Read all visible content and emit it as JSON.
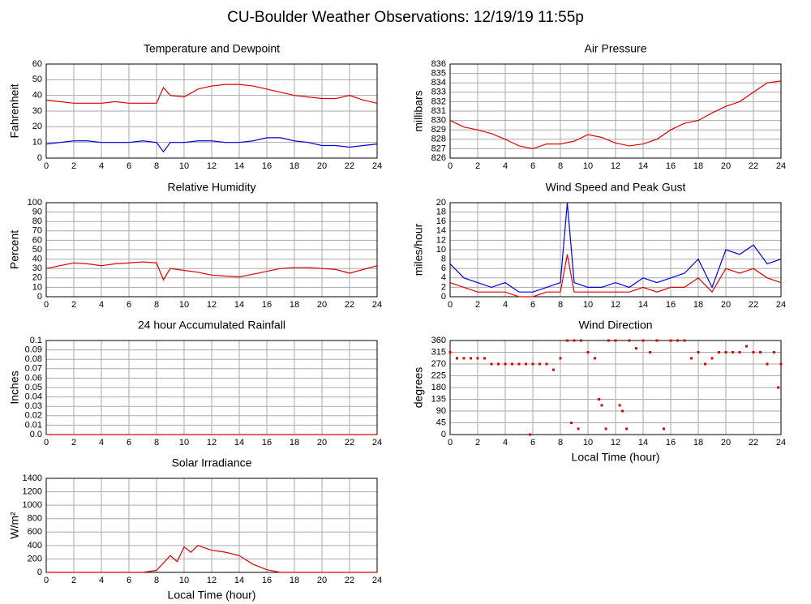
{
  "title": "CU-Boulder Weather Observations: 12/19/19 11:55p",
  "chart_data": [
    {
      "type": "line",
      "title": "Temperature and Dewpoint",
      "ylabel": "Fahrenheit",
      "x": [
        0,
        1,
        2,
        3,
        4,
        5,
        6,
        7,
        8,
        8.5,
        9,
        10,
        11,
        12,
        13,
        14,
        15,
        16,
        17,
        18,
        19,
        20,
        21,
        22,
        23,
        24
      ],
      "series": [
        {
          "color": "#e00000",
          "values": [
            37,
            36,
            35,
            35,
            35,
            36,
            35,
            35,
            35,
            45,
            40,
            39,
            44,
            46,
            47,
            47,
            46,
            44,
            42,
            40,
            39,
            38,
            38,
            40,
            37,
            35
          ]
        },
        {
          "color": "#0000e0",
          "values": [
            9,
            10,
            11,
            11,
            10,
            10,
            10,
            11,
            10,
            4,
            10,
            10,
            11,
            11,
            10,
            10,
            11,
            13,
            13,
            11,
            10,
            8,
            8,
            7,
            8,
            9
          ]
        }
      ],
      "xlim": [
        0,
        24
      ],
      "xticks": [
        0,
        2,
        4,
        6,
        8,
        10,
        12,
        14,
        16,
        18,
        20,
        22,
        24
      ],
      "ylim": [
        0,
        60
      ],
      "yticks": [
        0,
        10,
        20,
        30,
        40,
        50,
        60
      ],
      "grid": true
    },
    {
      "type": "line",
      "title": "Air Pressure",
      "ylabel": "millibars",
      "x": [
        0,
        1,
        2,
        3,
        4,
        5,
        6,
        7,
        8,
        9,
        10,
        11,
        12,
        13,
        14,
        15,
        16,
        17,
        18,
        19,
        20,
        21,
        22,
        23,
        24
      ],
      "series": [
        {
          "color": "#e00000",
          "values": [
            830,
            829.3,
            829,
            828.6,
            828,
            827.3,
            827,
            827.5,
            827.5,
            827.8,
            828.5,
            828.2,
            827.6,
            827.3,
            827.5,
            828,
            829,
            829.7,
            830,
            830.8,
            831.5,
            832,
            833,
            834,
            834.2
          ]
        }
      ],
      "xlim": [
        0,
        24
      ],
      "xticks": [
        0,
        2,
        4,
        6,
        8,
        10,
        12,
        14,
        16,
        18,
        20,
        22,
        24
      ],
      "ylim": [
        826,
        836
      ],
      "yticks": [
        826,
        827,
        828,
        829,
        830,
        831,
        832,
        833,
        834,
        835,
        836
      ],
      "grid": true
    },
    {
      "type": "line",
      "title": "Relative Humidity",
      "ylabel": "Percent",
      "x": [
        0,
        1,
        2,
        3,
        4,
        5,
        6,
        7,
        8,
        8.5,
        9,
        10,
        11,
        12,
        13,
        14,
        15,
        16,
        17,
        18,
        19,
        20,
        21,
        22,
        23,
        24
      ],
      "series": [
        {
          "color": "#e00000",
          "values": [
            30,
            33,
            36,
            35,
            33,
            35,
            36,
            37,
            36,
            18,
            30,
            28,
            26,
            23,
            22,
            21,
            24,
            27,
            30,
            31,
            31,
            30,
            29,
            25,
            29,
            33
          ]
        }
      ],
      "xlim": [
        0,
        24
      ],
      "xticks": [
        0,
        2,
        4,
        6,
        8,
        10,
        12,
        14,
        16,
        18,
        20,
        22,
        24
      ],
      "ylim": [
        0,
        100
      ],
      "yticks": [
        0,
        10,
        20,
        30,
        40,
        50,
        60,
        70,
        80,
        90,
        100
      ],
      "grid": true
    },
    {
      "type": "line",
      "title": "Wind Speed and Peak Gust",
      "ylabel": "miles/hour",
      "x": [
        0,
        1,
        2,
        3,
        4,
        5,
        6,
        7,
        8,
        8.5,
        9,
        10,
        11,
        12,
        13,
        14,
        15,
        16,
        17,
        18,
        19,
        20,
        21,
        22,
        23,
        24
      ],
      "series": [
        {
          "color": "#0000e0",
          "values": [
            7,
            4,
            3,
            2,
            3,
            1,
            1,
            2,
            3,
            20,
            3,
            2,
            2,
            3,
            2,
            4,
            3,
            4,
            5,
            8,
            2,
            10,
            9,
            11,
            7,
            8
          ]
        },
        {
          "color": "#e00000",
          "values": [
            3,
            2,
            1,
            1,
            1,
            0,
            0,
            1,
            1,
            9,
            1,
            1,
            1,
            1,
            1,
            2,
            1,
            2,
            2,
            4,
            1,
            6,
            5,
            6,
            4,
            3
          ]
        }
      ],
      "xlim": [
        0,
        24
      ],
      "xticks": [
        0,
        2,
        4,
        6,
        8,
        10,
        12,
        14,
        16,
        18,
        20,
        22,
        24
      ],
      "ylim": [
        0,
        20
      ],
      "yticks": [
        0,
        2,
        4,
        6,
        8,
        10,
        12,
        14,
        16,
        18,
        20
      ],
      "grid": true
    },
    {
      "type": "line",
      "title": "24 hour Accumulated Rainfall",
      "ylabel": "Inches",
      "x": [
        0,
        24
      ],
      "series": [
        {
          "color": "#e00000",
          "values": [
            0,
            0
          ]
        }
      ],
      "xlim": [
        0,
        24
      ],
      "xticks": [
        0,
        2,
        4,
        6,
        8,
        10,
        12,
        14,
        16,
        18,
        20,
        22,
        24
      ],
      "ylim": [
        0,
        0.1
      ],
      "yticks": [
        {
          "value": 0,
          "label": "0.0"
        },
        0.01,
        0.02,
        0.03,
        0.04,
        0.05,
        0.06,
        0.07,
        0.08,
        0.09,
        0.1
      ],
      "grid": true
    },
    {
      "type": "scatter",
      "title": "Wind Direction",
      "ylabel": "degrees",
      "xlabel": "Local Time (hour)",
      "x": [
        0,
        0.5,
        1,
        1.5,
        2,
        2.5,
        3,
        3.5,
        4,
        4.5,
        5,
        5.5,
        5.8,
        6,
        6.5,
        7,
        7.5,
        8,
        8.5,
        8.8,
        9,
        9.3,
        9.5,
        10,
        10.5,
        10.8,
        11,
        11.3,
        11.5,
        12,
        12.3,
        12.5,
        12.8,
        13,
        13.5,
        14,
        14.5,
        15,
        15.5,
        16,
        16.5,
        17,
        17.5,
        18,
        18.5,
        19,
        19.5,
        20,
        20.5,
        21,
        21.5,
        22,
        22.5,
        23,
        23.5,
        23.8,
        24
      ],
      "series": [
        {
          "color": "#e00000",
          "values": [
            315,
            292,
            292,
            292,
            292,
            292,
            270,
            270,
            270,
            270,
            270,
            270,
            0,
            270,
            270,
            270,
            248,
            292,
            360,
            45,
            360,
            22,
            360,
            315,
            292,
            135,
            112,
            22,
            360,
            360,
            112,
            90,
            22,
            360,
            330,
            360,
            315,
            360,
            22,
            360,
            360,
            360,
            292,
            315,
            270,
            292,
            315,
            315,
            315,
            315,
            338,
            315,
            315,
            270,
            315,
            180,
            270
          ]
        }
      ],
      "xlim": [
        0,
        24
      ],
      "xticks": [
        0,
        2,
        4,
        6,
        8,
        10,
        12,
        14,
        16,
        18,
        20,
        22,
        24
      ],
      "ylim": [
        0,
        360
      ],
      "yticks": [
        0,
        45,
        90,
        135,
        180,
        225,
        270,
        315,
        360
      ],
      "grid": true
    },
    {
      "type": "line",
      "title": "Solar Irradiance",
      "ylabel": "W/m²",
      "xlabel": "Local Time (hour)",
      "x": [
        0,
        7,
        8,
        9,
        9.5,
        10,
        10.5,
        11,
        12,
        13,
        14,
        15,
        16,
        17,
        24
      ],
      "series": [
        {
          "color": "#e00000",
          "values": [
            0,
            0,
            30,
            250,
            160,
            380,
            300,
            400,
            330,
            300,
            250,
            120,
            40,
            0,
            0
          ]
        }
      ],
      "xlim": [
        0,
        24
      ],
      "xticks": [
        0,
        2,
        4,
        6,
        8,
        10,
        12,
        14,
        16,
        18,
        20,
        22,
        24
      ],
      "ylim": [
        0,
        1400
      ],
      "yticks": [
        0,
        200,
        400,
        600,
        800,
        1000,
        1200,
        1400
      ],
      "grid": true
    }
  ]
}
